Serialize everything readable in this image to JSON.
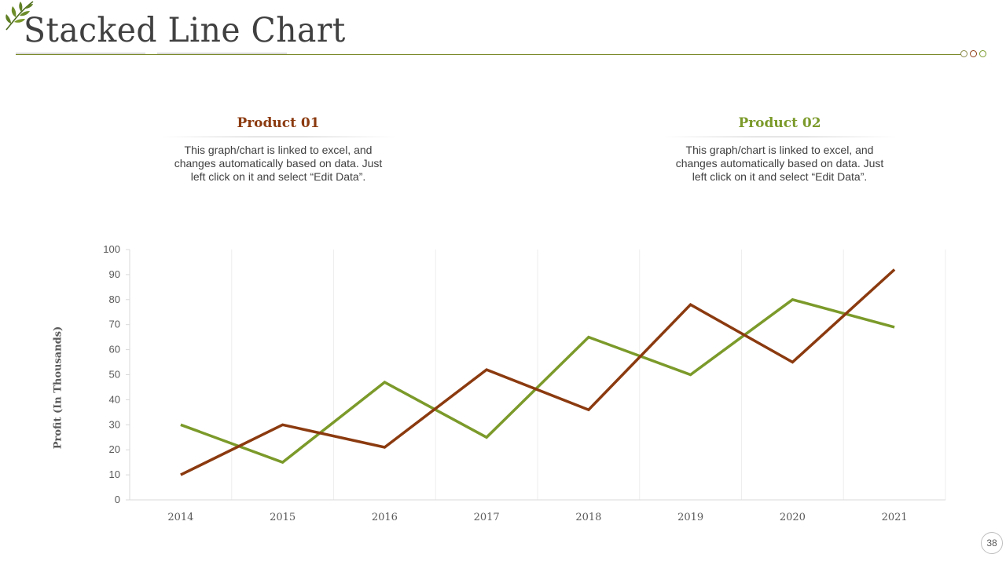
{
  "slide": {
    "title": "Stacked Line Chart",
    "page_number": "38"
  },
  "products": [
    {
      "name": "Product 01",
      "color": "#8b3a0f",
      "description": "This graph/chart is linked to excel, and changes automatically based on data. Just left click on it and select “Edit Data”."
    },
    {
      "name": "Product 02",
      "color": "#7b9a2a",
      "description": "This graph/chart is linked to excel, and changes automatically based on data. Just left click on it and select “Edit Data”."
    }
  ],
  "chart_data": {
    "type": "line",
    "title": "",
    "xlabel": "",
    "ylabel": "Profit (In Thousands)",
    "categories": [
      "2014",
      "2015",
      "2016",
      "2017",
      "2018",
      "2019",
      "2020",
      "2021"
    ],
    "ylim": [
      0,
      100
    ],
    "yticks": [
      0,
      10,
      20,
      30,
      40,
      50,
      60,
      70,
      80,
      90,
      100
    ],
    "grid": "vertical",
    "series": [
      {
        "name": "Product 01",
        "color": "#8b3a0f",
        "values": [
          10,
          30,
          21,
          52,
          36,
          78,
          55,
          92
        ]
      },
      {
        "name": "Product 02",
        "color": "#7b9a2a",
        "values": [
          30,
          15,
          47,
          25,
          65,
          50,
          80,
          69
        ]
      }
    ]
  }
}
